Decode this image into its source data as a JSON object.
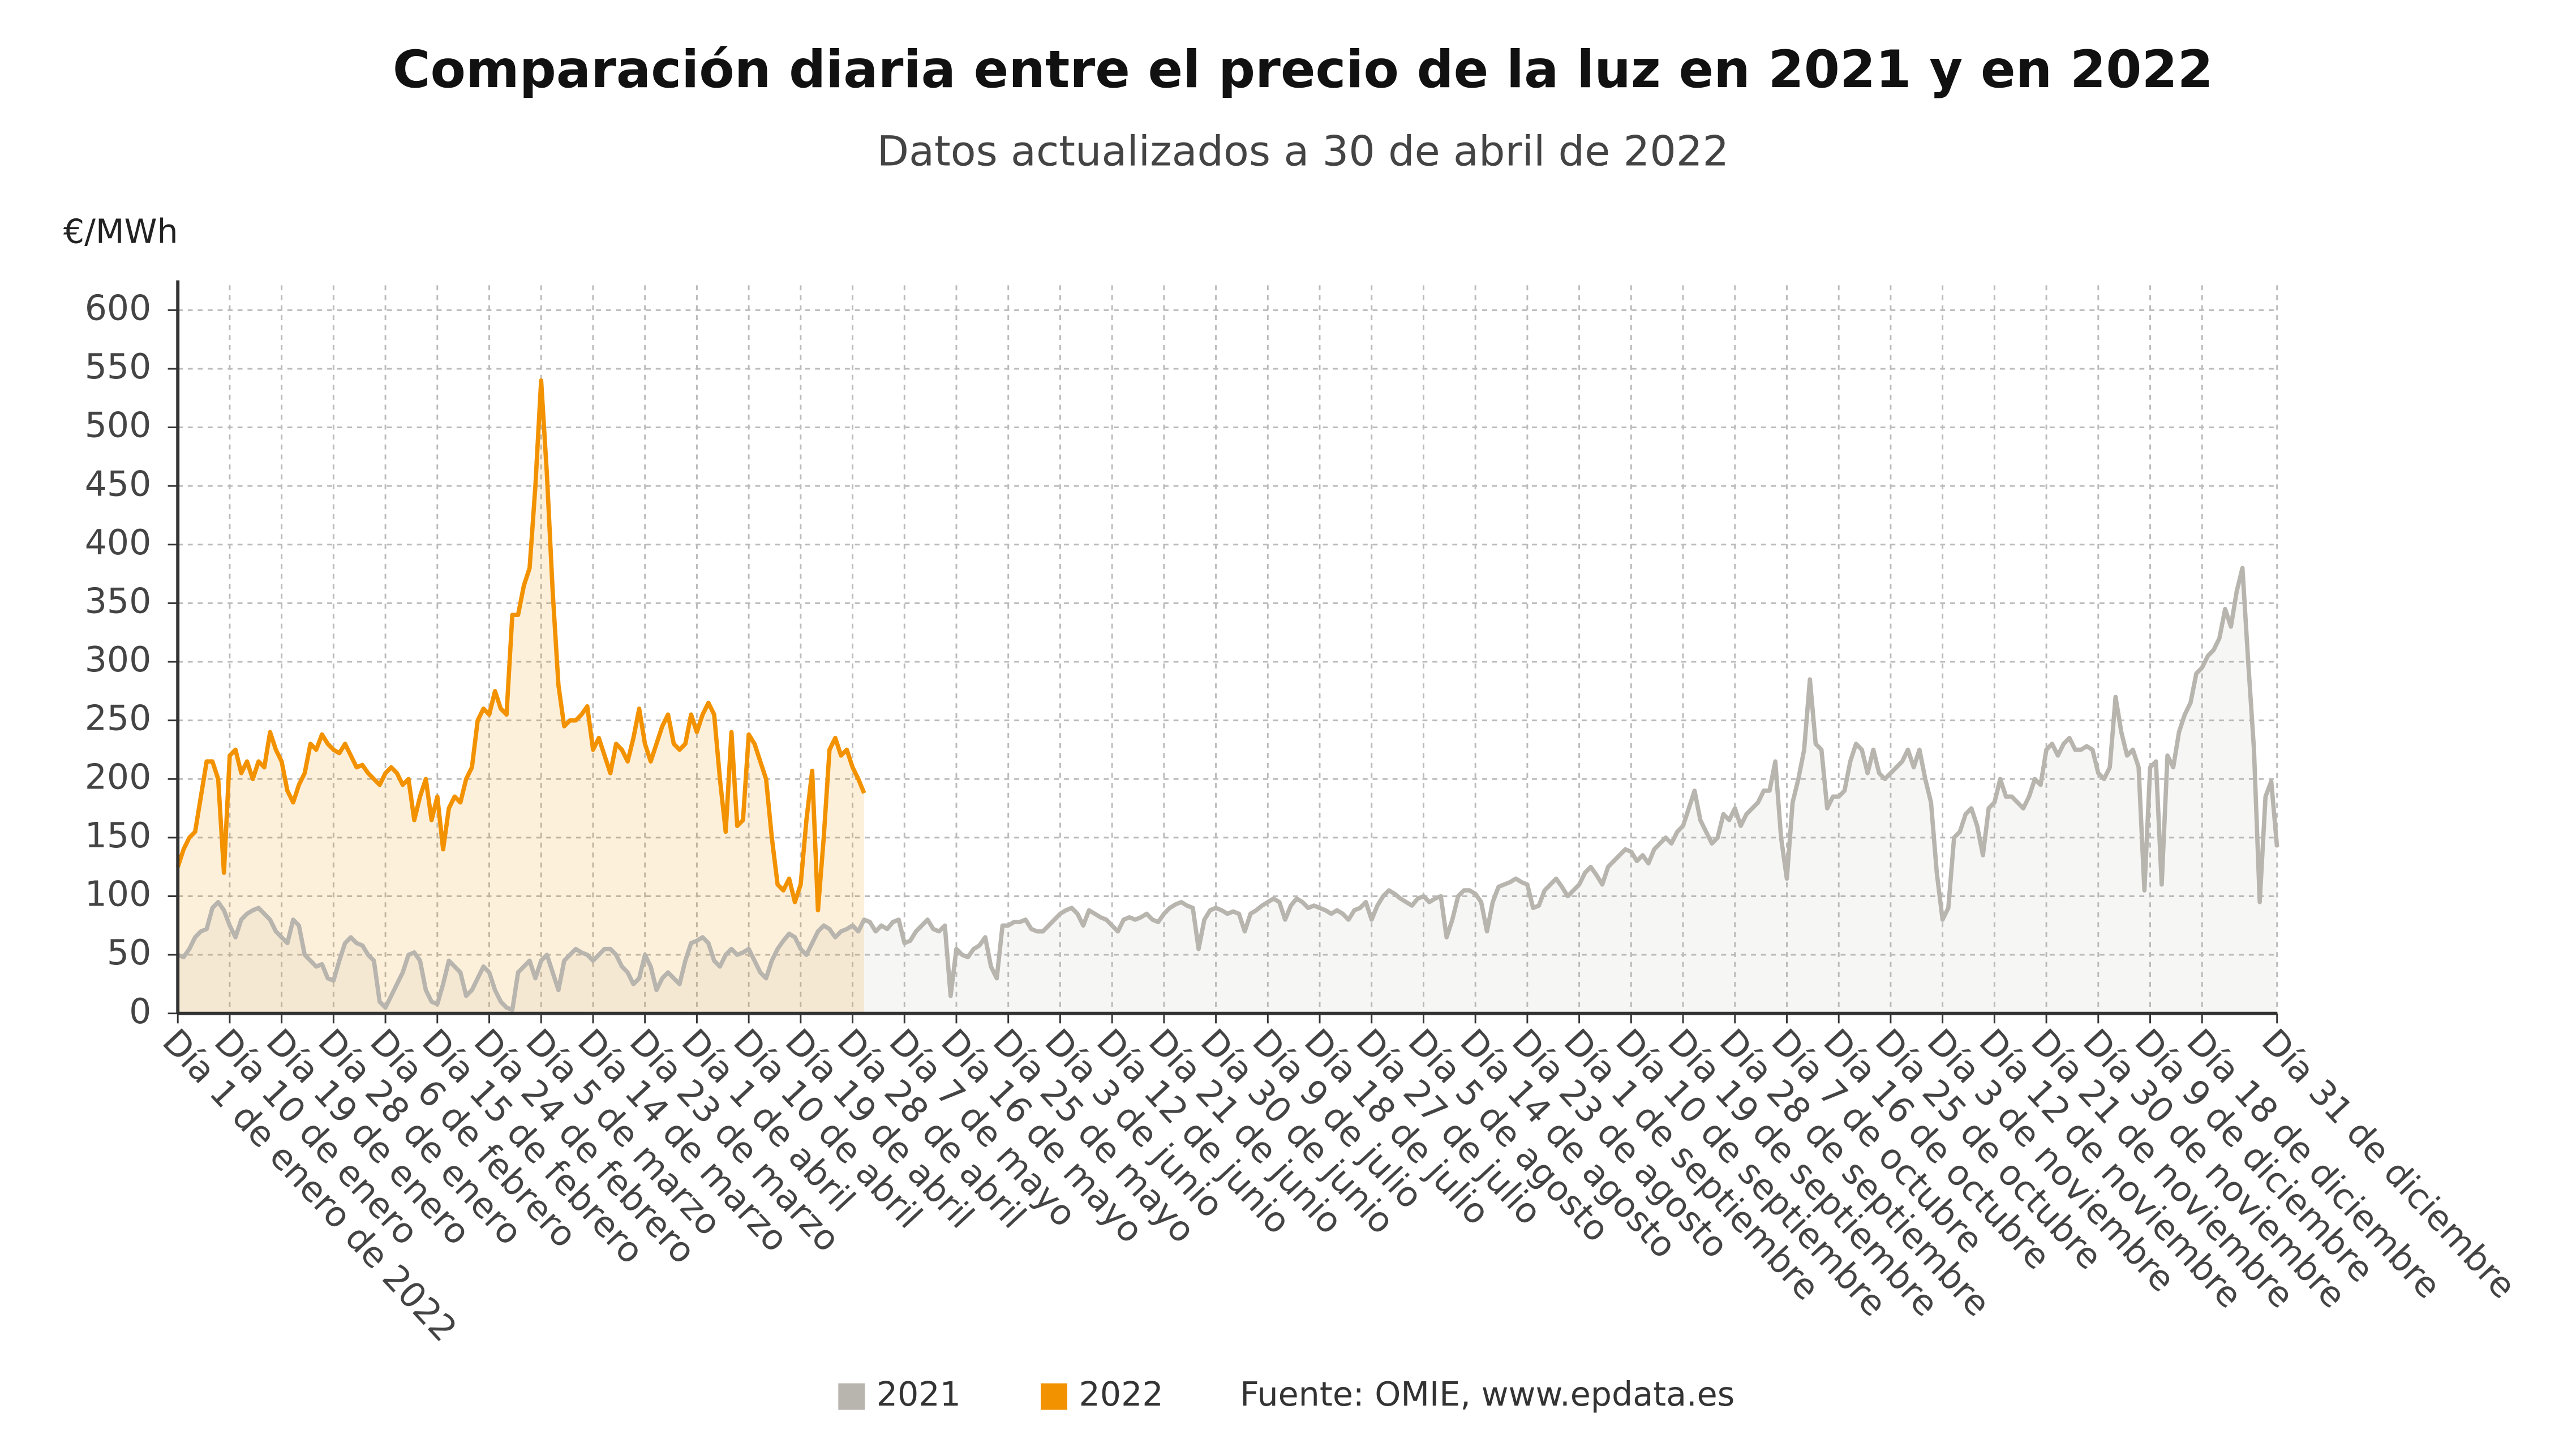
{
  "chart_data": {
    "type": "line",
    "title": "Comparación diaria entre el precio de la luz en 2021 y en 2022",
    "subtitle": "Datos actualizados a 30 de abril de 2022",
    "y_axis_label": "€/MWh",
    "source": "Fuente: OMIE, www.epdata.es",
    "ylim": [
      0,
      600
    ],
    "yticks": [
      0,
      50,
      100,
      150,
      200,
      250,
      300,
      350,
      400,
      450,
      500,
      550,
      600
    ],
    "grid": true,
    "legend": "bottom",
    "categories": [
      "Día 1 de enero de 2022",
      null,
      null,
      null,
      null,
      null,
      null,
      null,
      null,
      "Día 10 de enero",
      null,
      null,
      null,
      null,
      null,
      null,
      null,
      null,
      "Día 19 de enero",
      null,
      null,
      null,
      null,
      null,
      null,
      null,
      null,
      "Día 28 de enero",
      null,
      null,
      null,
      null,
      null,
      null,
      null,
      null,
      "Día 6 de febrero",
      null,
      null,
      null,
      null,
      null,
      null,
      null,
      null,
      "Día 15 de febrero",
      null,
      null,
      null,
      null,
      null,
      null,
      null,
      null,
      "Día 24 de febrero",
      null,
      null,
      null,
      null,
      null,
      null,
      null,
      null,
      "Día 5 de marzo",
      null,
      null,
      null,
      null,
      null,
      null,
      null,
      null,
      "Día 14 de marzo",
      null,
      null,
      null,
      null,
      null,
      null,
      null,
      null,
      "Día 23 de marzo",
      null,
      null,
      null,
      null,
      null,
      null,
      null,
      null,
      "Día 1 de abril",
      null,
      null,
      null,
      null,
      null,
      null,
      null,
      null,
      "Día 10 de abril",
      null,
      null,
      null,
      null,
      null,
      null,
      null,
      null,
      "Día 19 de abril",
      null,
      null,
      null,
      null,
      null,
      null,
      null,
      null,
      "Día 28 de abril",
      null,
      null,
      null,
      null,
      null,
      null,
      null,
      null,
      "Día 7 de mayo",
      null,
      null,
      null,
      null,
      null,
      null,
      null,
      null,
      "Día 16 de mayo",
      null,
      null,
      null,
      null,
      null,
      null,
      null,
      null,
      "Día 25 de mayo",
      null,
      null,
      null,
      null,
      null,
      null,
      null,
      null,
      "Día 3 de junio",
      null,
      null,
      null,
      null,
      null,
      null,
      null,
      null,
      "Día 12 de junio",
      null,
      null,
      null,
      null,
      null,
      null,
      null,
      null,
      "Día 21 de junio",
      null,
      null,
      null,
      null,
      null,
      null,
      null,
      null,
      "Día 30 de junio",
      null,
      null,
      null,
      null,
      null,
      null,
      null,
      null,
      "Día 9 de julio",
      null,
      null,
      null,
      null,
      null,
      null,
      null,
      null,
      "Día 18 de julio",
      null,
      null,
      null,
      null,
      null,
      null,
      null,
      null,
      "Día 27 de julio",
      null,
      null,
      null,
      null,
      null,
      null,
      null,
      null,
      "Día 5 de agosto",
      null,
      null,
      null,
      null,
      null,
      null,
      null,
      null,
      "Día 14 de agosto",
      null,
      null,
      null,
      null,
      null,
      null,
      null,
      null,
      "Día 23 de agosto",
      null,
      null,
      null,
      null,
      null,
      null,
      null,
      null,
      "Día 1 de septiembre",
      null,
      null,
      null,
      null,
      null,
      null,
      null,
      null,
      "Día 10 de septiembre",
      null,
      null,
      null,
      null,
      null,
      null,
      null,
      null,
      "Día 19 de septiembre",
      null,
      null,
      null,
      null,
      null,
      null,
      null,
      null,
      "Día 28 de septiembre",
      null,
      null,
      null,
      null,
      null,
      null,
      null,
      null,
      "Día 7 de octubre",
      null,
      null,
      null,
      null,
      null,
      null,
      null,
      null,
      "Día 16 de octubre",
      null,
      null,
      null,
      null,
      null,
      null,
      null,
      null,
      "Día 25 de octubre",
      null,
      null,
      null,
      null,
      null,
      null,
      null,
      null,
      "Día 3 de noviembre",
      null,
      null,
      null,
      null,
      null,
      null,
      null,
      null,
      "Día 12 de noviembre",
      null,
      null,
      null,
      null,
      null,
      null,
      null,
      null,
      "Día 21 de noviembre",
      null,
      null,
      null,
      null,
      null,
      null,
      null,
      null,
      "Día 30 de noviembre",
      null,
      null,
      null,
      null,
      null,
      null,
      null,
      null,
      "Día 9 de diciembre",
      null,
      null,
      null,
      null,
      null,
      null,
      null,
      null,
      "Día 18 de diciembre",
      null,
      null,
      null,
      null,
      null,
      null,
      null,
      null,
      null,
      null,
      null,
      null,
      "Día 31 de diciembre"
    ],
    "series": [
      {
        "name": "2021",
        "color": "#b8b4ae",
        "values": [
          50,
          48,
          55,
          65,
          70,
          72,
          90,
          95,
          88,
          75,
          65,
          80,
          85,
          88,
          90,
          85,
          80,
          70,
          65,
          60,
          80,
          75,
          50,
          45,
          40,
          42,
          30,
          28,
          45,
          60,
          65,
          60,
          58,
          50,
          45,
          10,
          5,
          15,
          25,
          35,
          50,
          52,
          45,
          20,
          10,
          8,
          25,
          45,
          40,
          35,
          15,
          20,
          30,
          40,
          35,
          20,
          10,
          5,
          3,
          35,
          40,
          45,
          30,
          45,
          50,
          35,
          20,
          45,
          50,
          55,
          52,
          50,
          45,
          50,
          55,
          55,
          50,
          40,
          35,
          25,
          30,
          50,
          40,
          20,
          30,
          35,
          30,
          25,
          45,
          60,
          62,
          65,
          60,
          45,
          40,
          50,
          55,
          50,
          52,
          55,
          45,
          35,
          30,
          45,
          55,
          62,
          68,
          65,
          55,
          50,
          60,
          70,
          75,
          72,
          65,
          70,
          72,
          75,
          70,
          80,
          78,
          70,
          75,
          72,
          78,
          80,
          60,
          62,
          70,
          75,
          80,
          72,
          70,
          75,
          15,
          55,
          50,
          48,
          55,
          58,
          65,
          40,
          30,
          75,
          75,
          78,
          78,
          80,
          72,
          70,
          70,
          75,
          80,
          85,
          88,
          90,
          85,
          75,
          88,
          85,
          82,
          80,
          75,
          70,
          80,
          82,
          80,
          82,
          85,
          80,
          78,
          85,
          90,
          93,
          95,
          92,
          90,
          55,
          80,
          88,
          90,
          88,
          85,
          87,
          85,
          70,
          85,
          88,
          92,
          95,
          98,
          95,
          80,
          92,
          98,
          95,
          90,
          92,
          90,
          88,
          85,
          88,
          85,
          80,
          88,
          90,
          95,
          80,
          92,
          100,
          105,
          102,
          98,
          95,
          92,
          98,
          100,
          95,
          98,
          100,
          65,
          80,
          100,
          105,
          105,
          102,
          95,
          70,
          95,
          108,
          110,
          112,
          115,
          112,
          110,
          90,
          92,
          105,
          110,
          115,
          108,
          100,
          105,
          110,
          120,
          125,
          118,
          110,
          125,
          130,
          135,
          140,
          138,
          130,
          135,
          128,
          140,
          145,
          150,
          145,
          155,
          160,
          175,
          190,
          165,
          155,
          145,
          150,
          170,
          165,
          175,
          160,
          170,
          175,
          180,
          190,
          190,
          215,
          150,
          115,
          180,
          200,
          225,
          285,
          230,
          225,
          175,
          185,
          185,
          190,
          215,
          230,
          225,
          205,
          225,
          205,
          200,
          205,
          210,
          215,
          225,
          210,
          225,
          200,
          180,
          120,
          80,
          90,
          150,
          155,
          170,
          175,
          160,
          135,
          175,
          180,
          200,
          185,
          185,
          180,
          175,
          185,
          200,
          195,
          225,
          230,
          220,
          230,
          235,
          225,
          225,
          228,
          225,
          205,
          200,
          210,
          270,
          240,
          220,
          225,
          210,
          105,
          210,
          215,
          110,
          220,
          210,
          240,
          255,
          265,
          290,
          295,
          305,
          310,
          320,
          345,
          330,
          360,
          380,
          300,
          225,
          95,
          185,
          198,
          142
        ]
      },
      {
        "name": "2022",
        "color": "#f39200",
        "values": [
          125,
          140,
          150,
          155,
          185,
          215,
          215,
          200,
          120,
          220,
          225,
          205,
          215,
          200,
          215,
          210,
          240,
          225,
          215,
          190,
          180,
          195,
          205,
          230,
          225,
          238,
          230,
          225,
          222,
          230,
          220,
          210,
          212,
          205,
          200,
          195,
          205,
          210,
          205,
          195,
          200,
          165,
          185,
          200,
          165,
          185,
          140,
          175,
          185,
          180,
          200,
          210,
          250,
          260,
          255,
          275,
          260,
          255,
          340,
          340,
          365,
          380,
          450,
          540,
          460,
          360,
          280,
          245,
          250,
          250,
          255,
          262,
          225,
          235,
          220,
          205,
          230,
          225,
          215,
          235,
          260,
          230,
          215,
          230,
          245,
          255,
          230,
          225,
          230,
          255,
          240,
          255,
          265,
          255,
          200,
          155,
          240,
          160,
          165,
          238,
          230,
          215,
          200,
          150,
          110,
          105,
          115,
          95,
          110,
          165,
          207,
          88,
          150,
          225,
          235,
          220,
          225,
          210,
          200,
          188,
          null,
          null,
          null,
          null,
          null,
          null,
          null,
          null,
          null,
          null,
          null,
          null,
          null,
          null,
          null,
          null,
          null,
          null,
          null,
          null,
          null,
          null,
          null,
          null,
          null,
          null,
          null,
          null,
          null,
          null,
          null,
          null,
          null,
          null,
          null,
          null,
          null,
          null,
          null,
          null,
          null,
          null,
          null,
          null,
          null,
          null,
          null,
          null,
          null,
          null,
          null,
          null,
          null,
          null,
          null,
          null,
          null,
          null,
          null,
          null,
          null,
          null,
          null,
          null,
          null,
          null,
          null,
          null,
          null,
          null,
          null,
          null,
          null,
          null,
          null,
          null,
          null,
          null,
          null,
          null,
          null,
          null,
          null,
          null,
          null,
          null,
          null,
          null,
          null,
          null,
          null,
          null,
          null,
          null,
          null,
          null,
          null,
          null,
          null,
          null,
          null,
          null,
          null,
          null,
          null,
          null,
          null,
          null,
          null,
          null,
          null,
          null,
          null,
          null,
          null,
          null,
          null,
          null,
          null,
          null,
          null,
          null,
          null,
          null,
          null,
          null,
          null,
          null,
          null,
          null,
          null,
          null,
          null,
          null,
          null,
          null,
          null,
          null,
          null,
          null,
          null,
          null,
          null,
          null,
          null,
          null,
          null,
          null,
          null,
          null,
          null,
          null,
          null,
          null,
          null,
          null,
          null,
          null,
          null,
          null,
          null,
          null,
          null,
          null,
          null,
          null,
          null,
          null,
          null,
          null,
          null,
          null,
          null,
          null,
          null,
          null,
          null,
          null,
          null,
          null,
          null,
          null,
          null,
          null,
          null,
          null,
          null,
          null,
          null,
          null,
          null,
          null,
          null,
          null,
          null,
          null,
          null,
          null,
          null,
          null,
          null,
          null,
          null,
          null,
          null,
          null,
          null,
          null,
          null,
          null,
          null,
          null,
          null,
          null,
          null,
          null,
          null,
          null,
          null,
          null,
          null,
          null,
          null,
          null,
          null,
          null,
          null,
          null,
          null,
          null,
          null,
          null,
          null,
          null,
          null,
          null,
          null,
          null,
          null,
          null,
          null,
          null,
          null,
          null,
          null
        ]
      }
    ]
  }
}
